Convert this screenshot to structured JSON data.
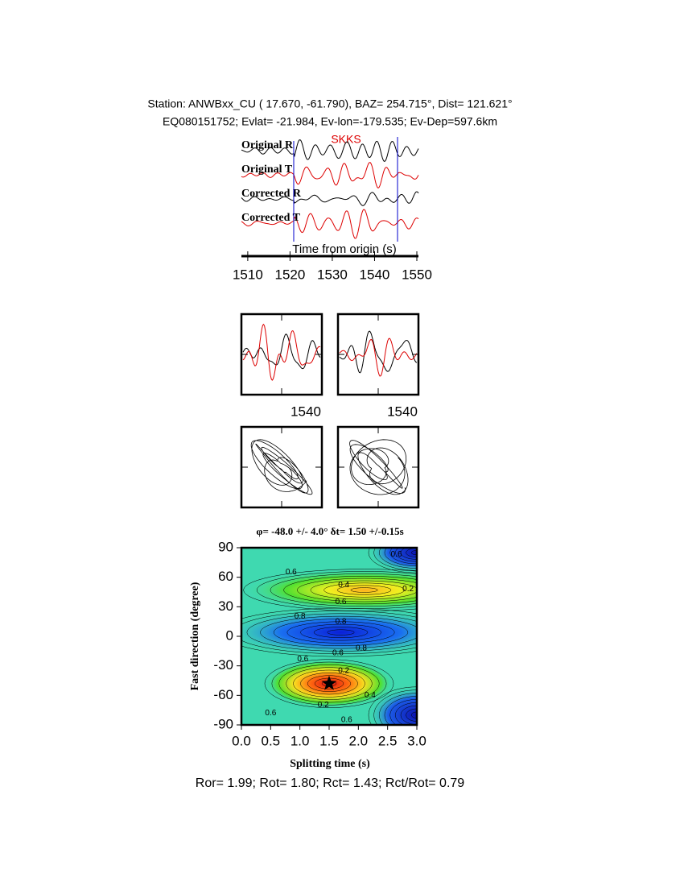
{
  "header": {
    "station": "Station: ANWBxx_CU (  17.670,  -61.790), BAZ=  254.715°, Dist=  121.621°",
    "event": "EQ080151752; Evlat= -21.984, Ev-lon=-179.535; Ev-Dep=597.6km"
  },
  "traces": {
    "phase": "SKKS",
    "labels": [
      "Original R",
      "Original T",
      "Corrected R",
      "Corrected T"
    ],
    "xlabel": "Time from origin (s)",
    "xlim": [
      1508.5,
      1550
    ],
    "xticks": [
      1510,
      1520,
      1530,
      1540,
      1550
    ]
  },
  "particle": {
    "ticks": [
      1540,
      1540
    ]
  },
  "grid_search": {
    "title": "φ= -48.0 +/- 4.0° δt= 1.50 +/-0.15s",
    "xlabel": "Splitting time (s)",
    "ylabel": "Fast direction (degree)",
    "xlim": [
      0,
      3
    ],
    "ylim": [
      -90,
      90
    ],
    "xticks": [
      {
        "value": 0,
        "label": "0.0"
      },
      {
        "value": 0.5,
        "label": "0.5"
      },
      {
        "value": 1,
        "label": "1.0"
      },
      {
        "value": 1.5,
        "label": "1.5"
      },
      {
        "value": 2,
        "label": "2.0"
      },
      {
        "value": 2.5,
        "label": "2.5"
      },
      {
        "value": 3,
        "label": "3.0"
      }
    ],
    "yticks": [
      -90,
      -60,
      -30,
      0,
      30,
      60,
      90
    ],
    "best": {
      "dt": 1.5,
      "phi": -48
    },
    "contour_labels": [
      "0.6",
      "0.6",
      "0.4",
      "0.2",
      "0.6",
      "0.8",
      "0.8",
      "0.6",
      "0.8",
      "0.6",
      "0.2",
      "0.4",
      "0.2",
      "0.6",
      "0.6"
    ]
  },
  "footer": "Ror= 1.99; Rot= 1.80; Rct= 1.43; Rct/Rot= 0.79"
}
